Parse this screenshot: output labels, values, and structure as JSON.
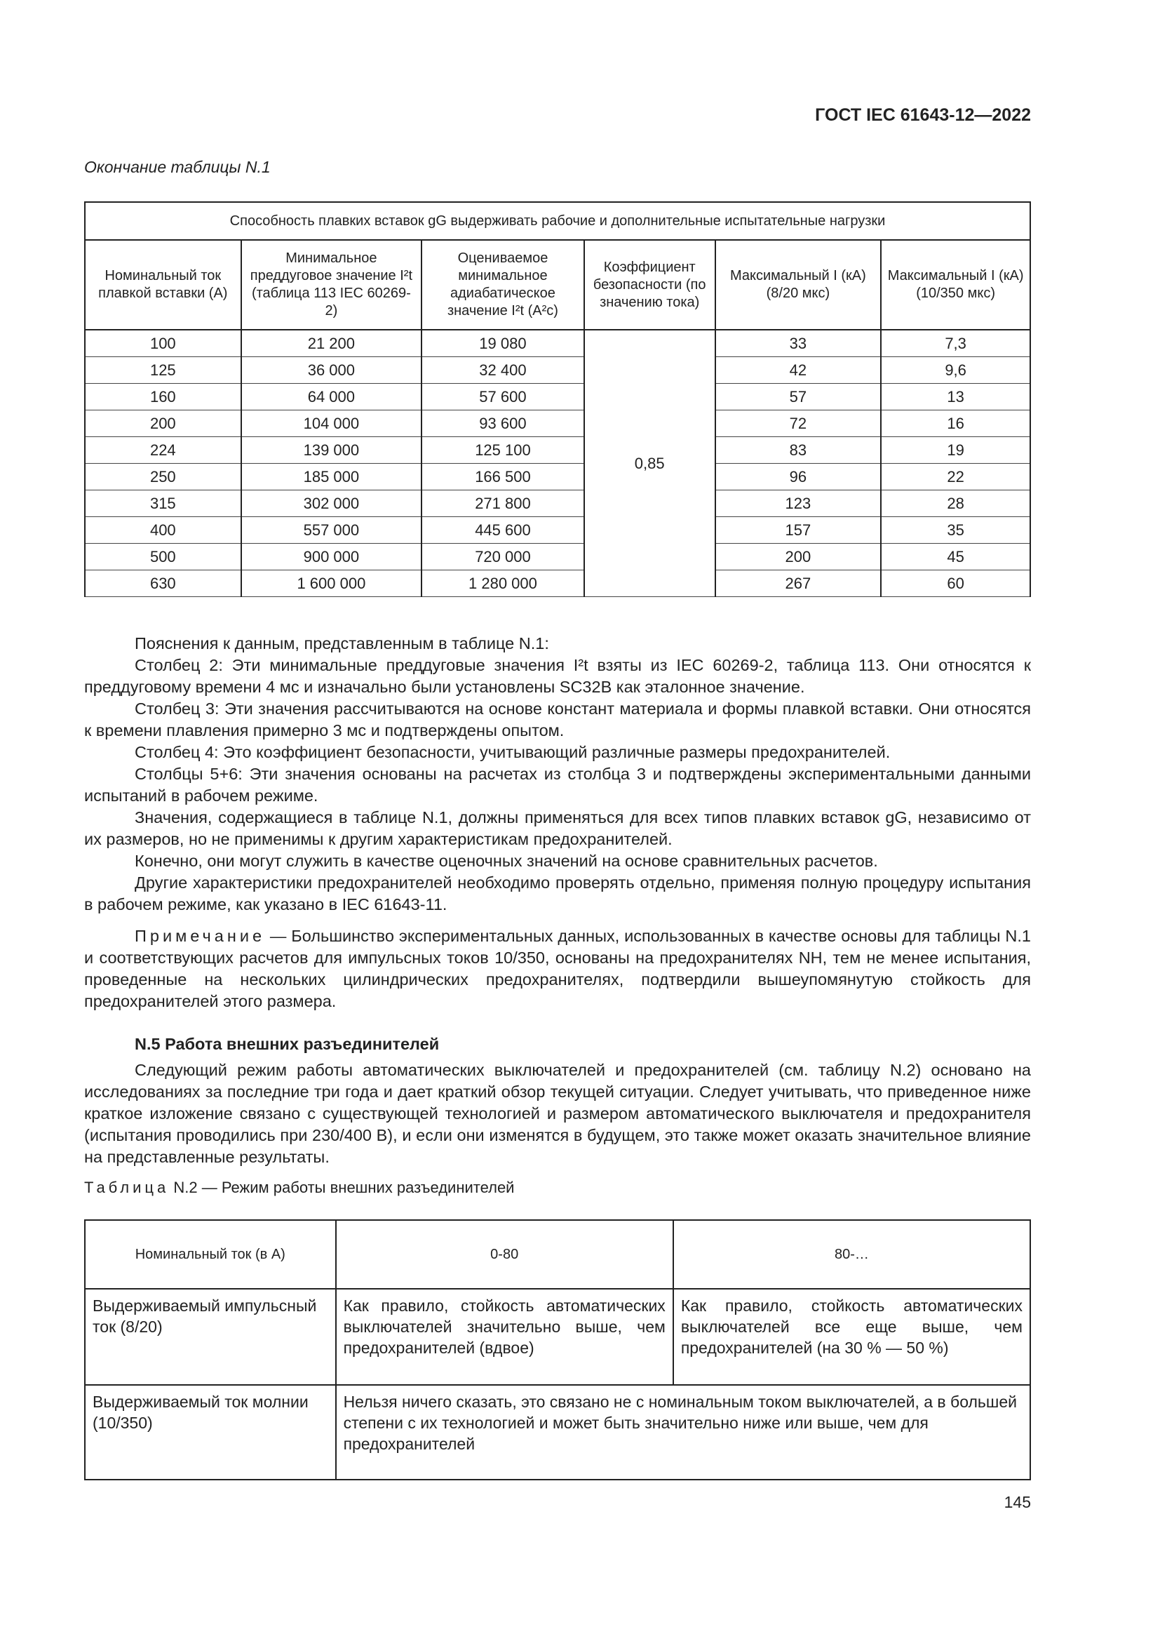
{
  "header": {
    "doc_id": "ГОСТ IEC 61643-12—2022"
  },
  "table1": {
    "caption": "Окончание таблицы N.1",
    "title": "Способность плавких вставок gG выдерживать рабочие и дополнительные испытательные нагрузки",
    "columns": [
      "Номинальный ток плавкой вставки (А)",
      "Минимальное преддуговое значение I²t (таблица 113 IEC 60269-2)",
      "Оцениваемое минимальное адиабатическое значение I²t (A²c)",
      "Коэффициент безопасности (по значению тока)",
      "Максимальный I (кА) (8/20 мкс)",
      "Максимальный I (кА) (10/350 мкс)"
    ],
    "safety_factor": "0,85",
    "rows": [
      [
        "100",
        "21 200",
        "19 080",
        "33",
        "7,3"
      ],
      [
        "125",
        "36 000",
        "32 400",
        "42",
        "9,6"
      ],
      [
        "160",
        "64 000",
        "57 600",
        "57",
        "13"
      ],
      [
        "200",
        "104 000",
        "93 600",
        "72",
        "16"
      ],
      [
        "224",
        "139 000",
        "125 100",
        "83",
        "19"
      ],
      [
        "250",
        "185 000",
        "166 500",
        "96",
        "22"
      ],
      [
        "315",
        "302 000",
        "271 800",
        "123",
        "28"
      ],
      [
        "400",
        "557 000",
        "445 600",
        "157",
        "35"
      ],
      [
        "500",
        "900 000",
        "720 000",
        "200",
        "45"
      ],
      [
        "630",
        "1 600 000",
        "1 280 000",
        "267",
        "60"
      ]
    ]
  },
  "explanations": [
    "Пояснения к данным, представленным в таблице N.1:",
    "Столбец 2:  Эти минимальные преддуговые значения I²t взяты из IEC 60269-2, таблица 113. Они относятся к преддуговому времени 4 мс и изначально были установлены SC32B как эталонное значение.",
    "Столбец 3:  Эти значения рассчитываются на основе констант материала и формы плавкой вставки. Они относятся к времени плавления примерно 3 мс и подтверждены опытом.",
    "Столбец 4:  Это коэффициент безопасности, учитывающий различные размеры предохранителей.",
    "Столбцы 5+6: Эти значения основаны на расчетах из столбца 3 и подтверждены экспериментальными данными испытаний в рабочем режиме.",
    "Значения, содержащиеся в таблице N.1, должны применяться для всех типов плавких вставок gG, независимо от их размеров, но не применимы к другим характеристикам предохранителей.",
    "Конечно, они могут служить в качестве оценочных значений на основе сравнительных расчетов.",
    "Другие характеристики предохранителей необходимо проверять отдельно, применяя полную процедуру испытания в рабочем режиме, как указано в IEC 61643-11."
  ],
  "note": {
    "label": "Примечание",
    "text": " — Большинство экспериментальных данных, использованных в качестве основы для таблицы N.1 и соответствующих расчетов для импульсных токов 10/350, основаны на предохранителях NH, тем не менее испытания, проведенные на нескольких цилиндрических предохранителях, подтвердили вышеупомянутую стойкость для предохранителей этого размера."
  },
  "section": {
    "title": "N.5 Работа внешних разъединителей",
    "text": "Следующий режим работы автоматических выключателей и предохранителей (см. таблицу N.2) основано на исследованиях за последние три года и дает краткий обзор текущей ситуации. Следует учитывать, что приведенное ниже краткое изложение связано с существующей технологией и размером автоматического выключателя и предохранителя (испытания проводились при 230/400 В), и если они изменятся в будущем, это также может оказать значительное влияние на представленные результаты."
  },
  "table2": {
    "caption_label": "Таблица",
    "caption_text": " N.2 — Режим работы внешних разъединителей",
    "header": [
      "Номинальный ток (в А)",
      "0-80",
      "80-…"
    ],
    "row1": [
      "Выдерживаемый импульсный ток (8/20)",
      "Как правило, стойкость автоматических выключателей значительно выше, чем предохранителей (вдвое)",
      "Как правило, стойкость автоматических выключателей все еще выше, чем предохранителей (на 30 % — 50 %)"
    ],
    "row2": [
      "Выдерживаемый ток молнии (10/350)",
      "Нельзя ничего сказать, это связано не с номинальным током выключателей, а в большей степени с их технологией и может быть значительно ниже или выше, чем для предохранителей"
    ]
  },
  "page_number": "145"
}
